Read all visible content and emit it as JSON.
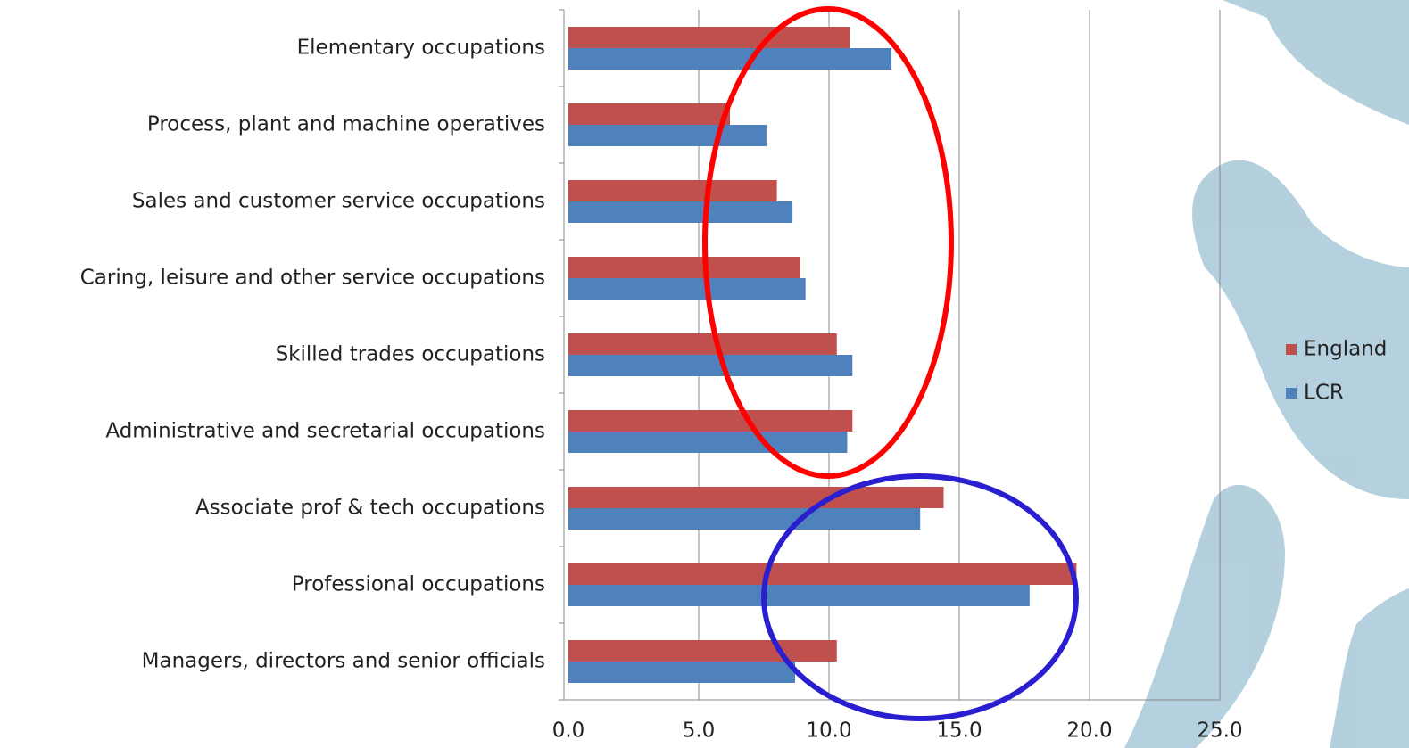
{
  "chart_data": {
    "type": "bar",
    "orientation": "horizontal",
    "categories": [
      "Elementary occupations",
      "Process, plant and machine operatives",
      "Sales and customer service occupations",
      "Caring, leisure and other service occupations",
      "Skilled trades occupations",
      "Administrative and secretarial occupations",
      "Associate prof & tech occupations",
      "Professional occupations",
      "Managers, directors and senior officials"
    ],
    "series": [
      {
        "name": "England",
        "color": "#c0504d",
        "values": [
          10.8,
          6.2,
          8.0,
          8.9,
          10.3,
          10.9,
          14.4,
          19.5,
          10.3
        ]
      },
      {
        "name": "LCR",
        "color": "#4f81bd",
        "values": [
          12.4,
          7.6,
          8.6,
          9.1,
          10.9,
          10.7,
          13.5,
          17.7,
          8.7
        ]
      }
    ],
    "xlim": [
      0,
      25
    ],
    "xticks": [
      {
        "value": 0,
        "label": "0.0"
      },
      {
        "value": 5,
        "label": "5.0"
      },
      {
        "value": 10,
        "label": "10.0"
      },
      {
        "value": 15,
        "label": "15.0"
      },
      {
        "value": 20,
        "label": "20.0"
      },
      {
        "value": 25,
        "label": "25.0"
      }
    ],
    "grid": true,
    "legend": "right"
  }
}
